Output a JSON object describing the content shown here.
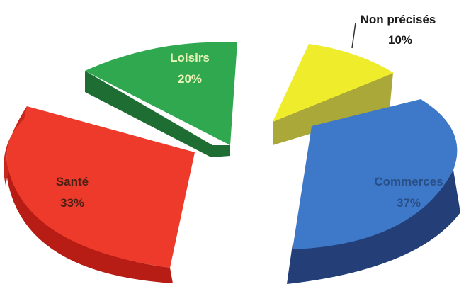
{
  "chart_data": {
    "type": "pie",
    "style": "3d-exploded",
    "slices": [
      {
        "key": "commerces",
        "label": "Commerces",
        "value": 37,
        "value_label": "37%",
        "color": "#3e78c9",
        "side_color": "#243f78",
        "label_color": "#2a4f86"
      },
      {
        "key": "sante",
        "label": "Santé",
        "value": 33,
        "value_label": "33%",
        "color": "#ee3a2b",
        "side_color": "#b71d14",
        "label_color": "#4a1f14"
      },
      {
        "key": "loisirs",
        "label": "Loisirs",
        "value": 20,
        "value_label": "20%",
        "color": "#2fa84f",
        "side_color": "#1e6e34",
        "label_color": "#e9f4b6"
      },
      {
        "key": "non_precises",
        "label": "Non précisés",
        "value": 10,
        "value_label": "10%",
        "color": "#efec2b",
        "side_color": "#a9a838",
        "label_color": "#1a1a1a"
      }
    ]
  }
}
